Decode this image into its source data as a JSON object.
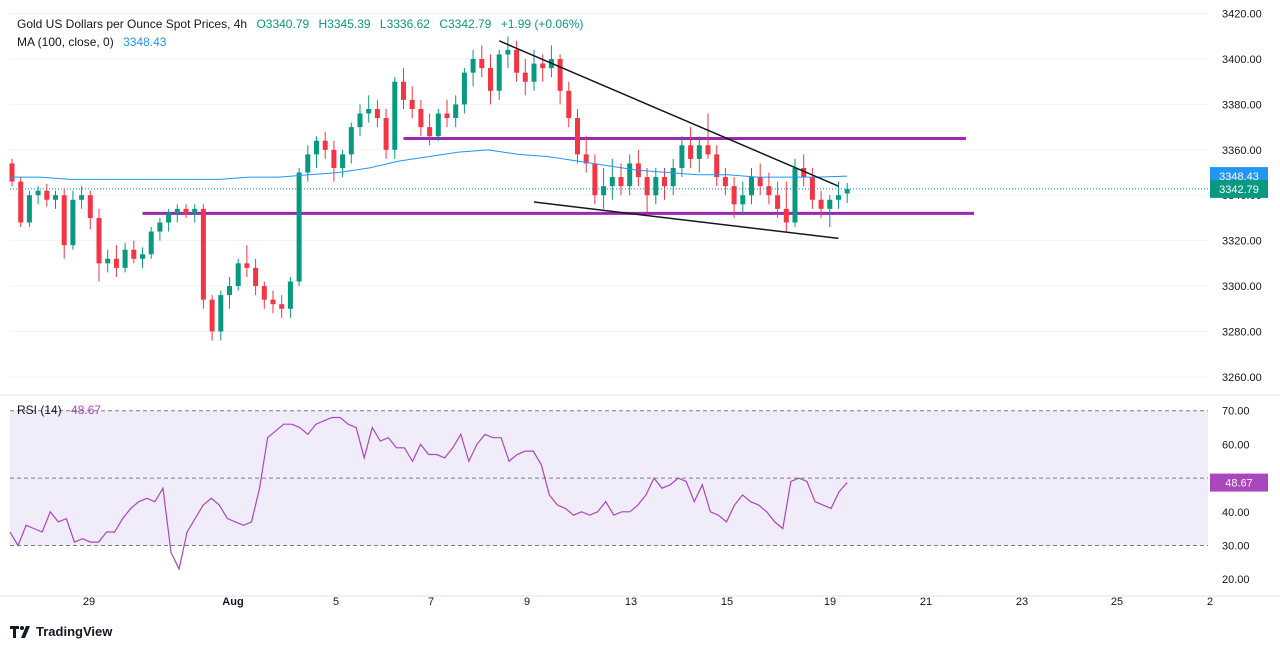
{
  "header": {
    "title": "Gold US Dollars per Ounce Spot Prices, 4h",
    "open": "O3340.79",
    "high": "H3345.39",
    "low": "L3336.62",
    "close": "C3342.79",
    "change": "+1.99 (+0.06%)",
    "ma_label": "MA (100, close, 0)",
    "ma_value": "3348.43",
    "rsi_label": "RSI (14)",
    "rsi_value": "48.67"
  },
  "brand": "TradingView",
  "colors": {
    "up": "#089981",
    "down": "#f23645",
    "ma": "#2196f3",
    "rsi": "#ab47bc",
    "level": "#9c27b0",
    "trendline": "#131722",
    "rsi_band": "#f1ecf9"
  },
  "chart_data": [
    {
      "type": "candlestick",
      "title": "Gold US Dollars per Ounce Spot Prices, 4h",
      "price_axis": [
        3260,
        3280,
        3300,
        3320,
        3340,
        3360,
        3380,
        3400,
        3420
      ],
      "price_axis_labels": [
        "3260.00",
        "3280.00",
        "3300.00",
        "3320.00",
        "3340.00",
        "3360.00",
        "3380.00",
        "3400.00",
        "3420.00"
      ],
      "ylim": [
        3252,
        3426
      ],
      "x_tick_labels": [
        "29",
        "Aug",
        "5",
        "7",
        "9",
        "13",
        "15",
        "19",
        "21",
        "23",
        "25",
        "2"
      ],
      "last_price": 3342.79,
      "last_price_label": "3342.79",
      "ma_last": 3348.43,
      "ma_last_label": "3348.43",
      "candles": [
        [
          3354,
          3356,
          3344,
          3346
        ],
        [
          3346,
          3348,
          3326,
          3328
        ],
        [
          3328,
          3342,
          3326,
          3340
        ],
        [
          3340,
          3344,
          3336,
          3342
        ],
        [
          3342,
          3345,
          3335,
          3338
        ],
        [
          3338,
          3342,
          3334,
          3340
        ],
        [
          3340,
          3343,
          3312,
          3318
        ],
        [
          3318,
          3342,
          3316,
          3338
        ],
        [
          3338,
          3344,
          3334,
          3340
        ],
        [
          3340,
          3342,
          3325,
          3330
        ],
        [
          3330,
          3334,
          3302,
          3310
        ],
        [
          3310,
          3316,
          3306,
          3312
        ],
        [
          3312,
          3318,
          3304,
          3308
        ],
        [
          3308,
          3319,
          3306,
          3316
        ],
        [
          3316,
          3320,
          3310,
          3312
        ],
        [
          3312,
          3317,
          3308,
          3314
        ],
        [
          3314,
          3326,
          3312,
          3324
        ],
        [
          3324,
          3330,
          3320,
          3328
        ],
        [
          3328,
          3334,
          3324,
          3332
        ],
        [
          3332,
          3336,
          3328,
          3334
        ],
        [
          3334,
          3336,
          3330,
          3332
        ],
        [
          3332,
          3336,
          3328,
          3334
        ],
        [
          3334,
          3336,
          3290,
          3294
        ],
        [
          3294,
          3296,
          3276,
          3280
        ],
        [
          3280,
          3298,
          3276,
          3296
        ],
        [
          3296,
          3304,
          3290,
          3300
        ],
        [
          3300,
          3312,
          3298,
          3310
        ],
        [
          3310,
          3318,
          3304,
          3308
        ],
        [
          3308,
          3312,
          3296,
          3300
        ],
        [
          3300,
          3302,
          3290,
          3294
        ],
        [
          3294,
          3298,
          3288,
          3292
        ],
        [
          3292,
          3296,
          3286,
          3290
        ],
        [
          3290,
          3304,
          3286,
          3302
        ],
        [
          3302,
          3352,
          3300,
          3350
        ],
        [
          3350,
          3362,
          3346,
          3358
        ],
        [
          3358,
          3366,
          3352,
          3364
        ],
        [
          3364,
          3368,
          3356,
          3360
        ],
        [
          3360,
          3364,
          3346,
          3352
        ],
        [
          3352,
          3360,
          3348,
          3358
        ],
        [
          3358,
          3372,
          3354,
          3370
        ],
        [
          3370,
          3380,
          3366,
          3376
        ],
        [
          3376,
          3384,
          3372,
          3378
        ],
        [
          3378,
          3382,
          3370,
          3374
        ],
        [
          3374,
          3378,
          3356,
          3360
        ],
        [
          3360,
          3392,
          3356,
          3390
        ],
        [
          3390,
          3396,
          3378,
          3382
        ],
        [
          3382,
          3388,
          3374,
          3378
        ],
        [
          3378,
          3382,
          3366,
          3370
        ],
        [
          3370,
          3376,
          3362,
          3366
        ],
        [
          3366,
          3378,
          3364,
          3376
        ],
        [
          3376,
          3382,
          3370,
          3374
        ],
        [
          3374,
          3384,
          3370,
          3380
        ],
        [
          3380,
          3396,
          3376,
          3394
        ],
        [
          3394,
          3404,
          3388,
          3400
        ],
        [
          3400,
          3406,
          3392,
          3396
        ],
        [
          3396,
          3402,
          3380,
          3386
        ],
        [
          3386,
          3404,
          3382,
          3402
        ],
        [
          3402,
          3410,
          3396,
          3404
        ],
        [
          3404,
          3408,
          3390,
          3394
        ],
        [
          3394,
          3400,
          3384,
          3390
        ],
        [
          3390,
          3404,
          3386,
          3398
        ],
        [
          3398,
          3402,
          3390,
          3396
        ],
        [
          3396,
          3406,
          3392,
          3400
        ],
        [
          3400,
          3402,
          3380,
          3386
        ],
        [
          3386,
          3390,
          3370,
          3374
        ],
        [
          3374,
          3378,
          3354,
          3358
        ],
        [
          3358,
          3366,
          3350,
          3354
        ],
        [
          3354,
          3358,
          3336,
          3340
        ],
        [
          3340,
          3352,
          3334,
          3344
        ],
        [
          3344,
          3356,
          3338,
          3348
        ],
        [
          3348,
          3354,
          3340,
          3344
        ],
        [
          3344,
          3358,
          3340,
          3354
        ],
        [
          3354,
          3360,
          3344,
          3348
        ],
        [
          3348,
          3352,
          3332,
          3340
        ],
        [
          3340,
          3352,
          3336,
          3348
        ],
        [
          3348,
          3352,
          3338,
          3344
        ],
        [
          3344,
          3356,
          3340,
          3352
        ],
        [
          3352,
          3366,
          3348,
          3362
        ],
        [
          3362,
          3370,
          3352,
          3356
        ],
        [
          3356,
          3366,
          3350,
          3362
        ],
        [
          3362,
          3376,
          3356,
          3358
        ],
        [
          3358,
          3362,
          3344,
          3348
        ],
        [
          3348,
          3352,
          3340,
          3344
        ],
        [
          3344,
          3348,
          3330,
          3336
        ],
        [
          3336,
          3346,
          3332,
          3340
        ],
        [
          3340,
          3352,
          3336,
          3348
        ],
        [
          3348,
          3354,
          3340,
          3344
        ],
        [
          3344,
          3350,
          3336,
          3340
        ],
        [
          3340,
          3346,
          3330,
          3334
        ],
        [
          3334,
          3346,
          3324,
          3328
        ],
        [
          3328,
          3356,
          3326,
          3352
        ],
        [
          3352,
          3358,
          3344,
          3348
        ],
        [
          3348,
          3352,
          3334,
          3338
        ],
        [
          3338,
          3342,
          3330,
          3334
        ],
        [
          3334,
          3340,
          3326,
          3338
        ],
        [
          3338,
          3346,
          3334,
          3340
        ],
        [
          3340.79,
          3345.39,
          3336.62,
          3342.79
        ]
      ],
      "ma": [
        3348,
        3348,
        3347,
        3347,
        3347,
        3347,
        3347,
        3347,
        3348,
        3348,
        3349,
        3350,
        3352,
        3355,
        3357,
        3359,
        3360,
        3358,
        3357,
        3355,
        3353,
        3351,
        3350,
        3349,
        3349,
        3348,
        3348,
        3348,
        3348.43
      ],
      "levels": [
        3365,
        3332
      ],
      "trendlines": [
        {
          "from": [
            56,
            3408
          ],
          "to": [
            95,
            3344
          ]
        },
        {
          "from": [
            60,
            3337
          ],
          "to": [
            95,
            3321
          ]
        }
      ]
    },
    {
      "type": "line",
      "title": "RSI (14)",
      "ylim": [
        15,
        72
      ],
      "axis": [
        20,
        30,
        40,
        50,
        60,
        70
      ],
      "axis_labels": [
        "20.00",
        "30.00",
        "40.00",
        "50.00",
        "60.00",
        "70.00"
      ],
      "bands": [
        30,
        50,
        70
      ],
      "last_value": 48.67,
      "last_label": "48.67",
      "values": [
        34,
        30,
        36,
        35,
        34,
        40,
        37,
        38,
        31,
        32,
        31,
        31,
        34,
        34,
        38,
        41,
        43,
        44,
        43,
        47,
        28,
        23,
        34,
        38,
        42,
        44,
        42,
        38,
        37,
        36,
        37,
        47,
        62,
        64,
        66,
        66,
        65,
        63,
        66,
        67,
        68,
        68,
        66,
        65,
        56,
        65,
        61,
        62,
        59,
        59,
        55,
        60,
        57,
        57,
        56,
        59,
        63,
        55,
        60,
        63,
        62,
        62,
        55,
        57,
        58,
        58,
        54,
        45,
        42,
        41,
        39,
        40,
        39,
        40,
        43,
        39,
        40,
        40,
        42,
        45,
        50,
        47,
        48,
        50,
        49,
        43,
        48,
        40,
        39,
        37,
        42,
        45,
        43,
        42,
        40,
        37,
        35,
        49,
        50,
        49,
        43,
        42,
        41,
        46,
        48.67
      ]
    }
  ]
}
